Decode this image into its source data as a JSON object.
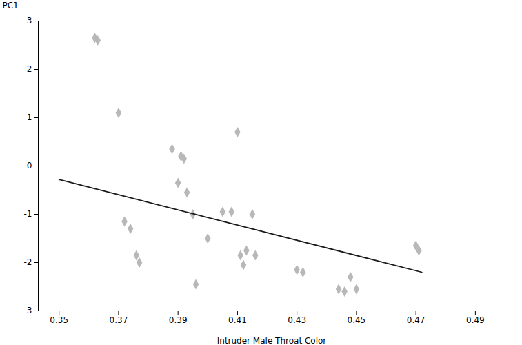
{
  "chart_data": {
    "type": "scatter",
    "xlabel": "Intruder Male Throat Color",
    "ylabel": "PC1",
    "series": [
      {
        "type": "scatter",
        "color": "#b8b8b8",
        "marker": "diamond",
        "x": [
          0.362,
          0.363,
          0.37,
          0.372,
          0.374,
          0.376,
          0.377,
          0.388,
          0.39,
          0.391,
          0.392,
          0.393,
          0.395,
          0.396,
          0.4,
          0.405,
          0.408,
          0.41,
          0.411,
          0.412,
          0.413,
          0.415,
          0.416,
          0.43,
          0.432,
          0.444,
          0.446,
          0.448,
          0.45,
          0.47,
          0.471
        ],
        "values": [
          2.65,
          2.6,
          1.1,
          -1.15,
          -1.3,
          -1.85,
          -2.0,
          0.35,
          -0.35,
          0.2,
          0.15,
          -0.55,
          -1.0,
          -2.45,
          -1.5,
          -0.95,
          -0.95,
          0.7,
          -1.85,
          -2.05,
          -1.75,
          -1.0,
          -1.85,
          -2.15,
          -2.2,
          -2.55,
          -2.6,
          -2.3,
          -2.55,
          -1.65,
          -1.75
        ]
      },
      {
        "type": "line",
        "color": "#1a1a1a",
        "x": [
          0.35,
          0.472
        ],
        "values": [
          -0.28,
          -2.2
        ]
      }
    ],
    "xlim": [
      0.343,
      0.5
    ],
    "ylim": [
      -3,
      3
    ],
    "xticks": [
      0.35,
      0.37,
      0.39,
      0.41,
      0.43,
      0.45,
      0.47,
      0.49
    ],
    "yticks": [
      -3,
      -2,
      -1,
      0,
      1,
      2,
      3
    ],
    "grid": false
  }
}
